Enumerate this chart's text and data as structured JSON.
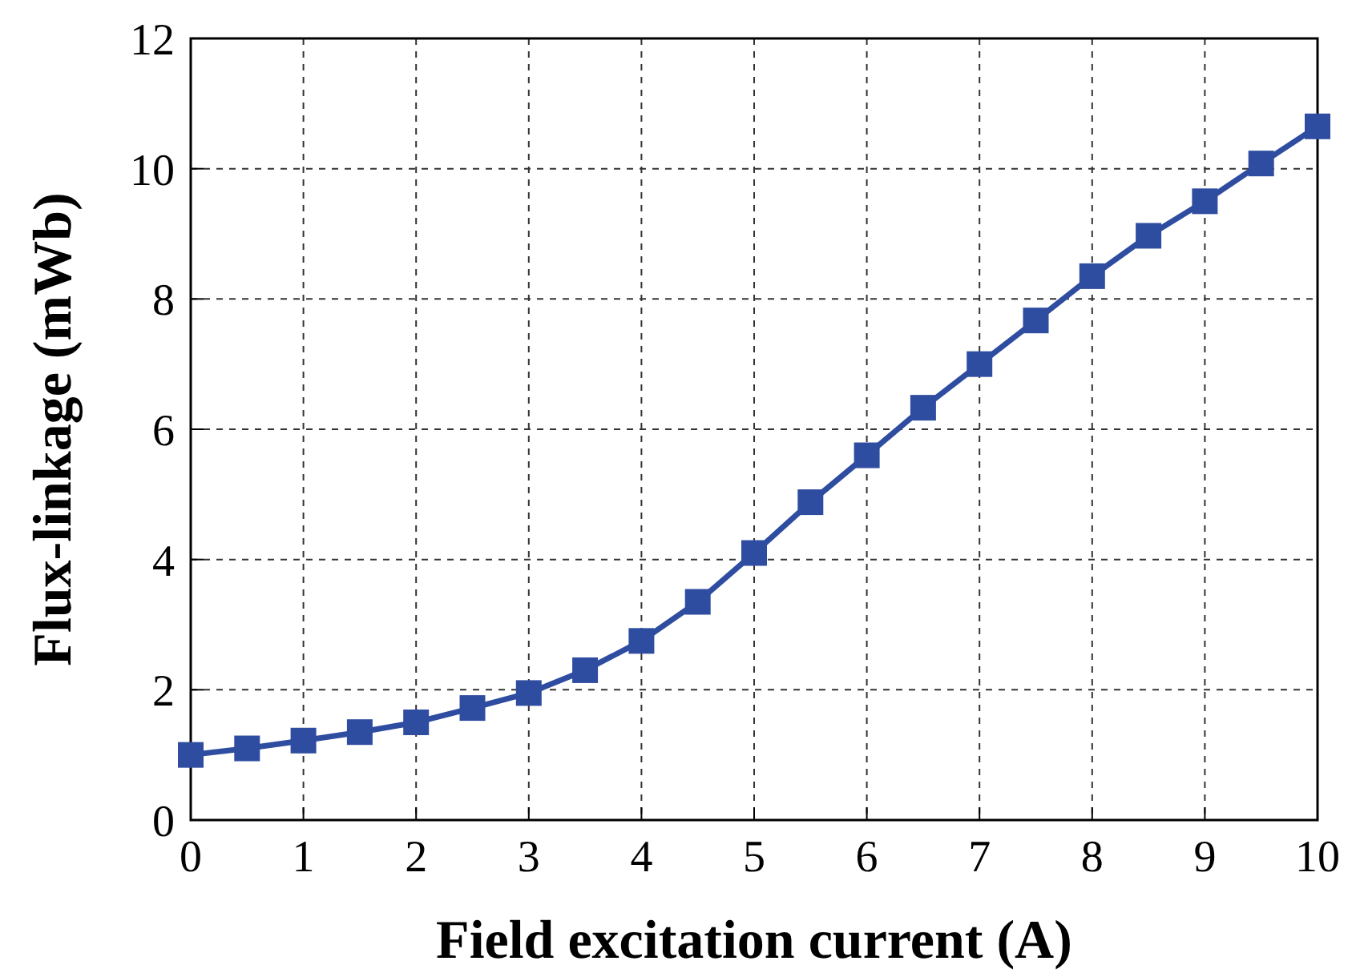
{
  "chart_data": {
    "type": "line",
    "xlabel": "Field excitation current (A)",
    "ylabel": "Flux-linkage (mWb)",
    "x": [
      0,
      0.5,
      1,
      1.5,
      2,
      2.5,
      3,
      3.5,
      4,
      4.5,
      5,
      5.5,
      6,
      6.5,
      7,
      7.5,
      8,
      8.5,
      9,
      9.5,
      10
    ],
    "series": [
      {
        "color": "#2f4da0",
        "values": [
          1.0,
          1.1,
          1.22,
          1.35,
          1.5,
          1.72,
          1.95,
          2.3,
          2.75,
          3.35,
          4.1,
          4.88,
          5.6,
          6.33,
          7.0,
          7.67,
          8.35,
          8.97,
          9.5,
          10.08,
          10.65
        ]
      }
    ],
    "xlim": [
      0,
      10
    ],
    "ylim": [
      0,
      12
    ],
    "xticks": [
      0,
      1,
      2,
      3,
      4,
      5,
      6,
      7,
      8,
      9,
      10
    ],
    "yticks": [
      0,
      2,
      4,
      6,
      8,
      10,
      12
    ],
    "grid": true,
    "marker": "square",
    "line_style": "solid"
  }
}
